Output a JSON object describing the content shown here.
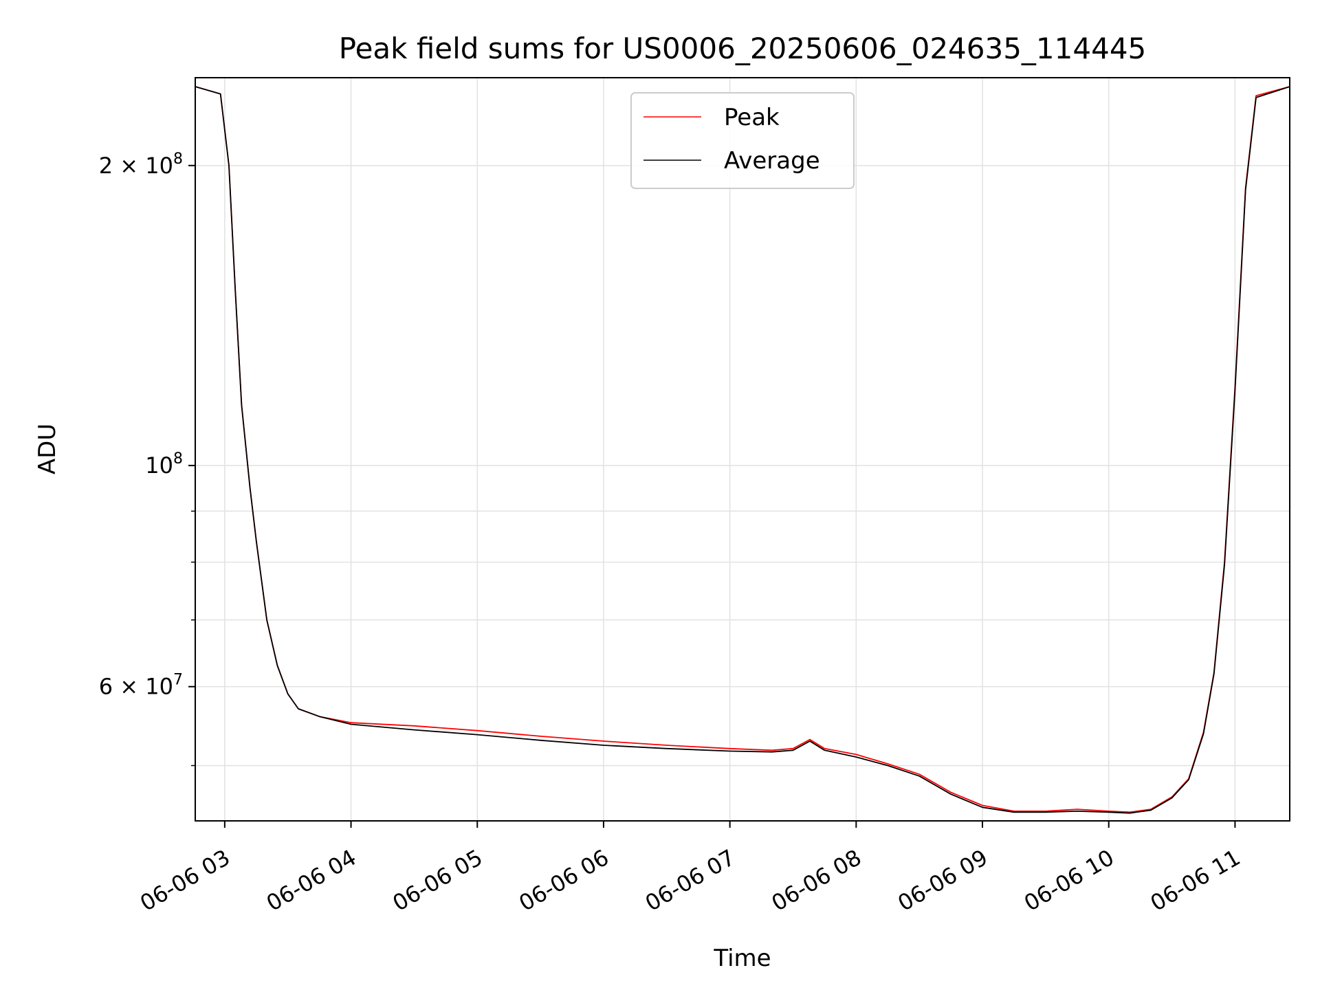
{
  "chart_data": {
    "type": "line",
    "title": "Peak field sums for US0006_20250606_024635_114445",
    "xlabel": "Time",
    "ylabel": "ADU",
    "y_scale": "log",
    "xlim": [
      "2025-06-06 02:46",
      "2025-06-06 11:26"
    ],
    "ylim": [
      44000000,
      245000000
    ],
    "grid": true,
    "legend": "upper center",
    "x_ticks": [
      {
        "value": "2025-06-06 03:00",
        "label": "06-06 03"
      },
      {
        "value": "2025-06-06 04:00",
        "label": "06-06 04"
      },
      {
        "value": "2025-06-06 05:00",
        "label": "06-06 05"
      },
      {
        "value": "2025-06-06 06:00",
        "label": "06-06 06"
      },
      {
        "value": "2025-06-06 07:00",
        "label": "06-06 07"
      },
      {
        "value": "2025-06-06 08:00",
        "label": "06-06 08"
      },
      {
        "value": "2025-06-06 09:00",
        "label": "06-06 09"
      },
      {
        "value": "2025-06-06 10:00",
        "label": "06-06 10"
      },
      {
        "value": "2025-06-06 11:00",
        "label": "06-06 11"
      }
    ],
    "y_ticks": [
      {
        "value": 200000000,
        "mantissa": "2 × 10",
        "exp": "8"
      },
      {
        "value": 100000000,
        "mantissa": "10",
        "exp": "8"
      },
      {
        "value": 60000000,
        "mantissa": "6 × 10",
        "exp": "7"
      }
    ],
    "y_minor_ticks": [
      50000000,
      70000000,
      80000000,
      90000000
    ],
    "series": [
      {
        "name": "Peak",
        "color": "#ff0000",
        "x": [
          "2025-06-06 02:46",
          "2025-06-06 02:58",
          "2025-06-06 03:02",
          "2025-06-06 03:05",
          "2025-06-06 03:08",
          "2025-06-06 03:12",
          "2025-06-06 03:15",
          "2025-06-06 03:20",
          "2025-06-06 03:25",
          "2025-06-06 03:30",
          "2025-06-06 03:35",
          "2025-06-06 03:45",
          "2025-06-06 04:00",
          "2025-06-06 04:30",
          "2025-06-06 05:00",
          "2025-06-06 05:30",
          "2025-06-06 06:00",
          "2025-06-06 06:30",
          "2025-06-06 07:00",
          "2025-06-06 07:20",
          "2025-06-06 07:30",
          "2025-06-06 07:38",
          "2025-06-06 07:45",
          "2025-06-06 08:00",
          "2025-06-06 08:15",
          "2025-06-06 08:30",
          "2025-06-06 08:45",
          "2025-06-06 09:00",
          "2025-06-06 09:15",
          "2025-06-06 09:30",
          "2025-06-06 09:45",
          "2025-06-06 10:00",
          "2025-06-06 10:10",
          "2025-06-06 10:20",
          "2025-06-06 10:30",
          "2025-06-06 10:38",
          "2025-06-06 10:45",
          "2025-06-06 10:50",
          "2025-06-06 10:55",
          "2025-06-06 11:00",
          "2025-06-06 11:05",
          "2025-06-06 11:10",
          "2025-06-06 11:26"
        ],
        "y": [
          240000000,
          236000000,
          200000000,
          150000000,
          115000000,
          95000000,
          84000000,
          70000000,
          63000000,
          59000000,
          57000000,
          56000000,
          55200000,
          54800000,
          54200000,
          53500000,
          52900000,
          52400000,
          52000000,
          51800000,
          52000000,
          53100000,
          52000000,
          51300000,
          50200000,
          49000000,
          47000000,
          45600000,
          45000000,
          45000000,
          45200000,
          45000000,
          44900000,
          45200000,
          46500000,
          48500000,
          54000000,
          62000000,
          80000000,
          120000000,
          190000000,
          235000000,
          240000000
        ]
      },
      {
        "name": "Average",
        "color": "#000000",
        "x": [
          "2025-06-06 02:46",
          "2025-06-06 02:58",
          "2025-06-06 03:02",
          "2025-06-06 03:05",
          "2025-06-06 03:08",
          "2025-06-06 03:12",
          "2025-06-06 03:15",
          "2025-06-06 03:20",
          "2025-06-06 03:25",
          "2025-06-06 03:30",
          "2025-06-06 03:35",
          "2025-06-06 03:45",
          "2025-06-06 04:00",
          "2025-06-06 04:30",
          "2025-06-06 05:00",
          "2025-06-06 05:30",
          "2025-06-06 06:00",
          "2025-06-06 06:30",
          "2025-06-06 07:00",
          "2025-06-06 07:20",
          "2025-06-06 07:30",
          "2025-06-06 07:38",
          "2025-06-06 07:45",
          "2025-06-06 08:00",
          "2025-06-06 08:15",
          "2025-06-06 08:30",
          "2025-06-06 08:45",
          "2025-06-06 09:00",
          "2025-06-06 09:15",
          "2025-06-06 09:30",
          "2025-06-06 09:45",
          "2025-06-06 10:00",
          "2025-06-06 10:10",
          "2025-06-06 10:20",
          "2025-06-06 10:30",
          "2025-06-06 10:38",
          "2025-06-06 10:45",
          "2025-06-06 10:50",
          "2025-06-06 10:55",
          "2025-06-06 11:00",
          "2025-06-06 11:05",
          "2025-06-06 11:10",
          "2025-06-06 11:26"
        ],
        "y": [
          240000000,
          236000000,
          200000000,
          150000000,
          115000000,
          95000000,
          84000000,
          70000000,
          63000000,
          59000000,
          57000000,
          56000000,
          55000000,
          54300000,
          53700000,
          53000000,
          52400000,
          52000000,
          51700000,
          51600000,
          51800000,
          52900000,
          51800000,
          51000000,
          50000000,
          48800000,
          46800000,
          45400000,
          44900000,
          44900000,
          45000000,
          44900000,
          44800000,
          45100000,
          46400000,
          48400000,
          53800000,
          61800000,
          79500000,
          119000000,
          189000000,
          234000000,
          240000000
        ]
      }
    ]
  }
}
